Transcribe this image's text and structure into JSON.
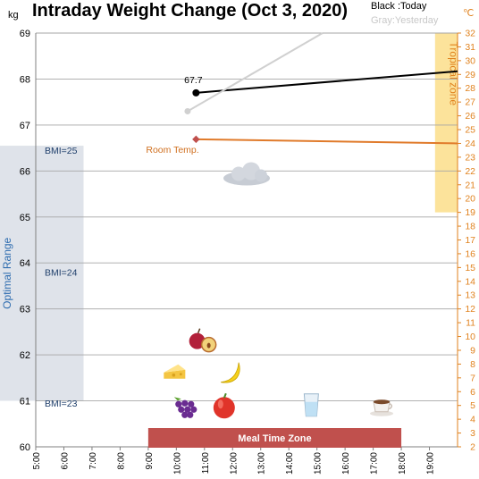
{
  "chart_data": {
    "type": "line",
    "title": "Intraday Weight Change (Oct 3, 2020)",
    "legend": {
      "today": "Black :Today",
      "yesterday": "Gray:Yesterday"
    },
    "y_left": {
      "unit": "kg",
      "min": 60,
      "max": 69,
      "ticks": [
        60,
        61,
        62,
        63,
        64,
        65,
        66,
        67,
        68,
        69
      ]
    },
    "y_right": {
      "unit": "℃",
      "min": 2,
      "max": 32,
      "ticks": [
        2,
        3,
        4,
        5,
        6,
        7,
        8,
        9,
        10,
        11,
        12,
        13,
        14,
        15,
        16,
        17,
        18,
        19,
        20,
        21,
        22,
        23,
        24,
        25,
        26,
        27,
        28,
        29,
        30,
        31,
        32
      ]
    },
    "x_axis": {
      "min": 5,
      "max": 20,
      "tick_labels": [
        "5:00",
        "6:00",
        "7:00",
        "8:00",
        "9:00",
        "10:00",
        "11:00",
        "12:00",
        "13:00",
        "14:00",
        "15:00",
        "16:00",
        "17:00",
        "18:00",
        "19:00"
      ]
    },
    "series": [
      {
        "key": "today",
        "axis": "left",
        "color": "#000000",
        "x": [
          10.7,
          20.0
        ],
        "y": [
          67.7,
          68.17
        ],
        "label": "67.7"
      },
      {
        "key": "yesterday",
        "axis": "left",
        "color": "#d0d0d0",
        "x": [
          10.4,
          15.2
        ],
        "y": [
          67.3,
          69.0
        ]
      },
      {
        "key": "room_temp",
        "axis": "right",
        "color": "#e07a2a",
        "x": [
          10.7,
          20.0
        ],
        "y": [
          24.3,
          24.0
        ]
      }
    ],
    "annotations": {
      "optimal_range": {
        "label": "Optimal Range",
        "y_from": 61.0,
        "y_to": 66.55,
        "x_from": 5.0,
        "x_to": 6.7,
        "color": "#dfe3ea"
      },
      "bmi_labels": [
        {
          "text": "BMI=25",
          "y": 66.55
        },
        {
          "text": "BMI=24",
          "y": 63.9
        },
        {
          "text": "BMI=23",
          "y": 61.05
        }
      ],
      "tropical_zone": {
        "label": "Tropical zone",
        "temp_from": 19,
        "temp_to": 32,
        "x_from": 19.2,
        "x_to": 20.0,
        "color": "#fce39b"
      },
      "room_temp_label": "Room Temp.",
      "meal_zone": {
        "label": "Meal Time Zone",
        "x_from": 9.0,
        "x_to": 18.0,
        "color": "#c0504d"
      },
      "icons": [
        {
          "name": "cloud-icon",
          "x": 12.5,
          "y": 65.9
        },
        {
          "name": "apple-plum-icon",
          "x": 10.9,
          "y": 62.3
        },
        {
          "name": "cheese-icon",
          "x": 10.0,
          "y": 61.6
        },
        {
          "name": "banana-icon",
          "x": 11.9,
          "y": 61.6
        },
        {
          "name": "grapes-icon",
          "x": 10.3,
          "y": 60.85
        },
        {
          "name": "apple-icon",
          "x": 11.7,
          "y": 60.85
        },
        {
          "name": "water-glass-icon",
          "x": 14.8,
          "y": 60.9
        },
        {
          "name": "coffee-cup-icon",
          "x": 17.3,
          "y": 60.9
        }
      ]
    }
  }
}
